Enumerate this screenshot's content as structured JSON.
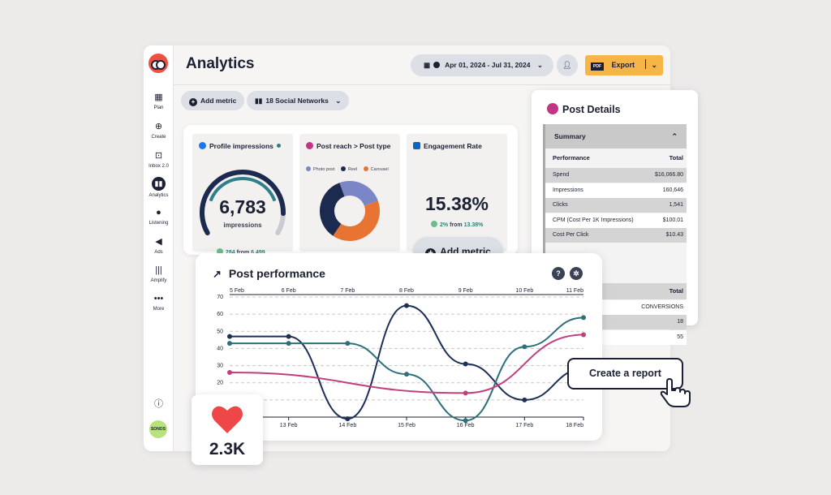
{
  "app": {
    "title": "Analytics",
    "date_range": "Apr 01, 2024 - Jul 31, 2024",
    "export_label": "Export",
    "pdf_tag": "PDF"
  },
  "sidebar": {
    "items": [
      {
        "label": "Plan",
        "icon": "calendar-icon"
      },
      {
        "label": "Create",
        "icon": "plus-circle-icon"
      },
      {
        "label": "Inbox 2.0",
        "icon": "inbox-icon"
      },
      {
        "label": "Analytics",
        "icon": "bar-chart-icon",
        "active": true
      },
      {
        "label": "Listening",
        "icon": "lightbulb-icon"
      },
      {
        "label": "Ads",
        "icon": "megaphone-icon"
      },
      {
        "label": "Amplify",
        "icon": "amplify-icon"
      },
      {
        "label": "More",
        "icon": "more-icon"
      }
    ],
    "avatar_label": "SONOS"
  },
  "toolbar": {
    "add_metric": "Add metric",
    "networks": "18 Social Networks"
  },
  "cards": {
    "impressions": {
      "title": "Profile impressions",
      "value": "6,783",
      "unit": "impressions",
      "trend_value": "284",
      "trend_text": "from",
      "trend_base": "6,499",
      "gauge_fraction": 0.88
    },
    "reach": {
      "title": "Post reach > Post type",
      "legend": [
        "Photo post",
        "Reel",
        "Carousel"
      ],
      "slices": [
        {
          "name": "Photo post",
          "value": 25,
          "color": "#7b86c6"
        },
        {
          "name": "Carousel",
          "value": 40,
          "color": "#e77432"
        },
        {
          "name": "Reel",
          "value": 35,
          "color": "#1c2a4f"
        }
      ]
    },
    "engagement": {
      "title": "Engagement Rate",
      "value": "15.38%",
      "trend_value": "2%",
      "trend_text": "from",
      "trend_base": "13.38%"
    }
  },
  "add_metric_big": "Add metric",
  "post_details": {
    "title": "Post Details",
    "summary": "Summary",
    "header": {
      "label": "Performance",
      "total": "Total"
    },
    "rows": [
      {
        "label": "Spend",
        "value": "$16,066.80"
      },
      {
        "label": "Impressions",
        "value": "160,646"
      },
      {
        "label": "Clicks",
        "value": "1,541"
      },
      {
        "label": "CPM (Cost Per 1K Impressions)",
        "value": "$100.01"
      },
      {
        "label": "Cost Per Click",
        "value": "$10.43"
      }
    ],
    "header2": {
      "total": "Total"
    },
    "rows2": [
      {
        "value": "CONVERSIONS"
      },
      {
        "value": "18"
      },
      {
        "value": "55"
      }
    ]
  },
  "post_performance": {
    "title": "Post performance",
    "help": "?",
    "chart_data": {
      "type": "line",
      "x_top": [
        "5 Feb",
        "6 Feb",
        "7 Feb",
        "8 Feb",
        "9 Feb",
        "10 Feb",
        "11 Feb"
      ],
      "x_bottom": [
        "13 Feb",
        "14 Feb",
        "15 Feb",
        "16 Feb",
        "17 Feb",
        "18 Feb"
      ],
      "yticks": [
        10,
        20,
        30,
        40,
        50,
        60,
        70
      ],
      "ylim": [
        0,
        70
      ],
      "series": [
        {
          "color": "#1e2f55",
          "points": [
            [
              0,
              47
            ],
            [
              1,
              47
            ],
            [
              2,
              -1
            ],
            [
              3,
              65
            ],
            [
              4,
              31
            ],
            [
              5,
              10
            ],
            [
              6,
              28
            ]
          ]
        },
        {
          "color": "#2e6f7a",
          "points": [
            [
              0,
              43
            ],
            [
              1,
              43
            ],
            [
              2,
              43
            ],
            [
              3,
              25
            ],
            [
              4,
              -2
            ],
            [
              5,
              41
            ],
            [
              6,
              58
            ]
          ]
        },
        {
          "color": "#c13f7e",
          "points": [
            [
              0,
              26
            ],
            [
              4,
              14
            ],
            [
              6,
              48
            ]
          ]
        }
      ]
    }
  },
  "cta": "Create a report",
  "likes": "2.3K"
}
